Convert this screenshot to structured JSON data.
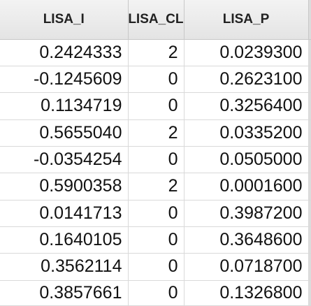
{
  "table": {
    "columns": [
      {
        "label": "LISA_I"
      },
      {
        "label": "LISA_CL"
      },
      {
        "label": "LISA_P"
      }
    ],
    "rows": [
      {
        "lisa_i": "0.2424333",
        "lisa_cl": "2",
        "lisa_p": "0.0239300"
      },
      {
        "lisa_i": "-0.1245609",
        "lisa_cl": "0",
        "lisa_p": "0.2623100"
      },
      {
        "lisa_i": "0.1134719",
        "lisa_cl": "0",
        "lisa_p": "0.3256400"
      },
      {
        "lisa_i": "0.5655040",
        "lisa_cl": "2",
        "lisa_p": "0.0335200"
      },
      {
        "lisa_i": "-0.0354254",
        "lisa_cl": "0",
        "lisa_p": "0.0505000"
      },
      {
        "lisa_i": "0.5900358",
        "lisa_cl": "2",
        "lisa_p": "0.0001600"
      },
      {
        "lisa_i": "0.0141713",
        "lisa_cl": "0",
        "lisa_p": "0.3987200"
      },
      {
        "lisa_i": "0.1640105",
        "lisa_cl": "0",
        "lisa_p": "0.3648600"
      },
      {
        "lisa_i": "0.3562114",
        "lisa_cl": "0",
        "lisa_p": "0.0718700"
      },
      {
        "lisa_i": "0.3857661",
        "lisa_cl": "0",
        "lisa_p": "0.1326800"
      }
    ]
  }
}
